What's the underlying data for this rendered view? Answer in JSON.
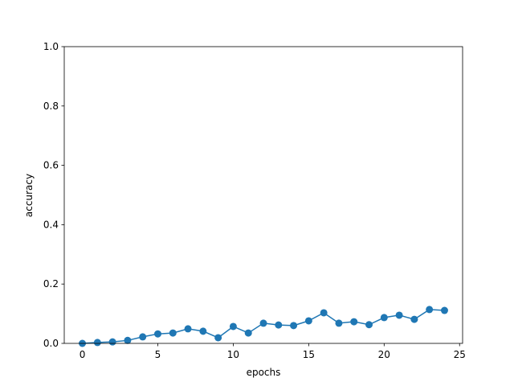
{
  "chart_data": {
    "type": "line",
    "x": [
      0,
      1,
      2,
      3,
      4,
      5,
      6,
      7,
      8,
      9,
      10,
      11,
      12,
      13,
      14,
      15,
      16,
      17,
      18,
      19,
      20,
      21,
      22,
      23,
      24
    ],
    "series": [
      {
        "color": "#1f77b4",
        "values": [
          0,
          0.003,
          0.005,
          0.01,
          0.022,
          0.032,
          0.035,
          0.049,
          0.041,
          0.019,
          0.057,
          0.035,
          0.068,
          0.062,
          0.06,
          0.076,
          0.103,
          0.068,
          0.073,
          0.063,
          0.087,
          0.095,
          0.081,
          0.114,
          0.111
        ]
      }
    ],
    "xlabel": "epochs",
    "ylabel": "accuracy",
    "xlim": [
      -1.2,
      25.2
    ],
    "xticks": [
      0,
      5,
      10,
      15,
      20,
      25
    ],
    "ylim": [
      0,
      1
    ],
    "yticks": [
      {
        "value": 0,
        "label": "0.0"
      },
      0.2,
      0.4,
      0.6,
      0.8,
      {
        "value": 1,
        "label": "1.0"
      }
    ]
  }
}
